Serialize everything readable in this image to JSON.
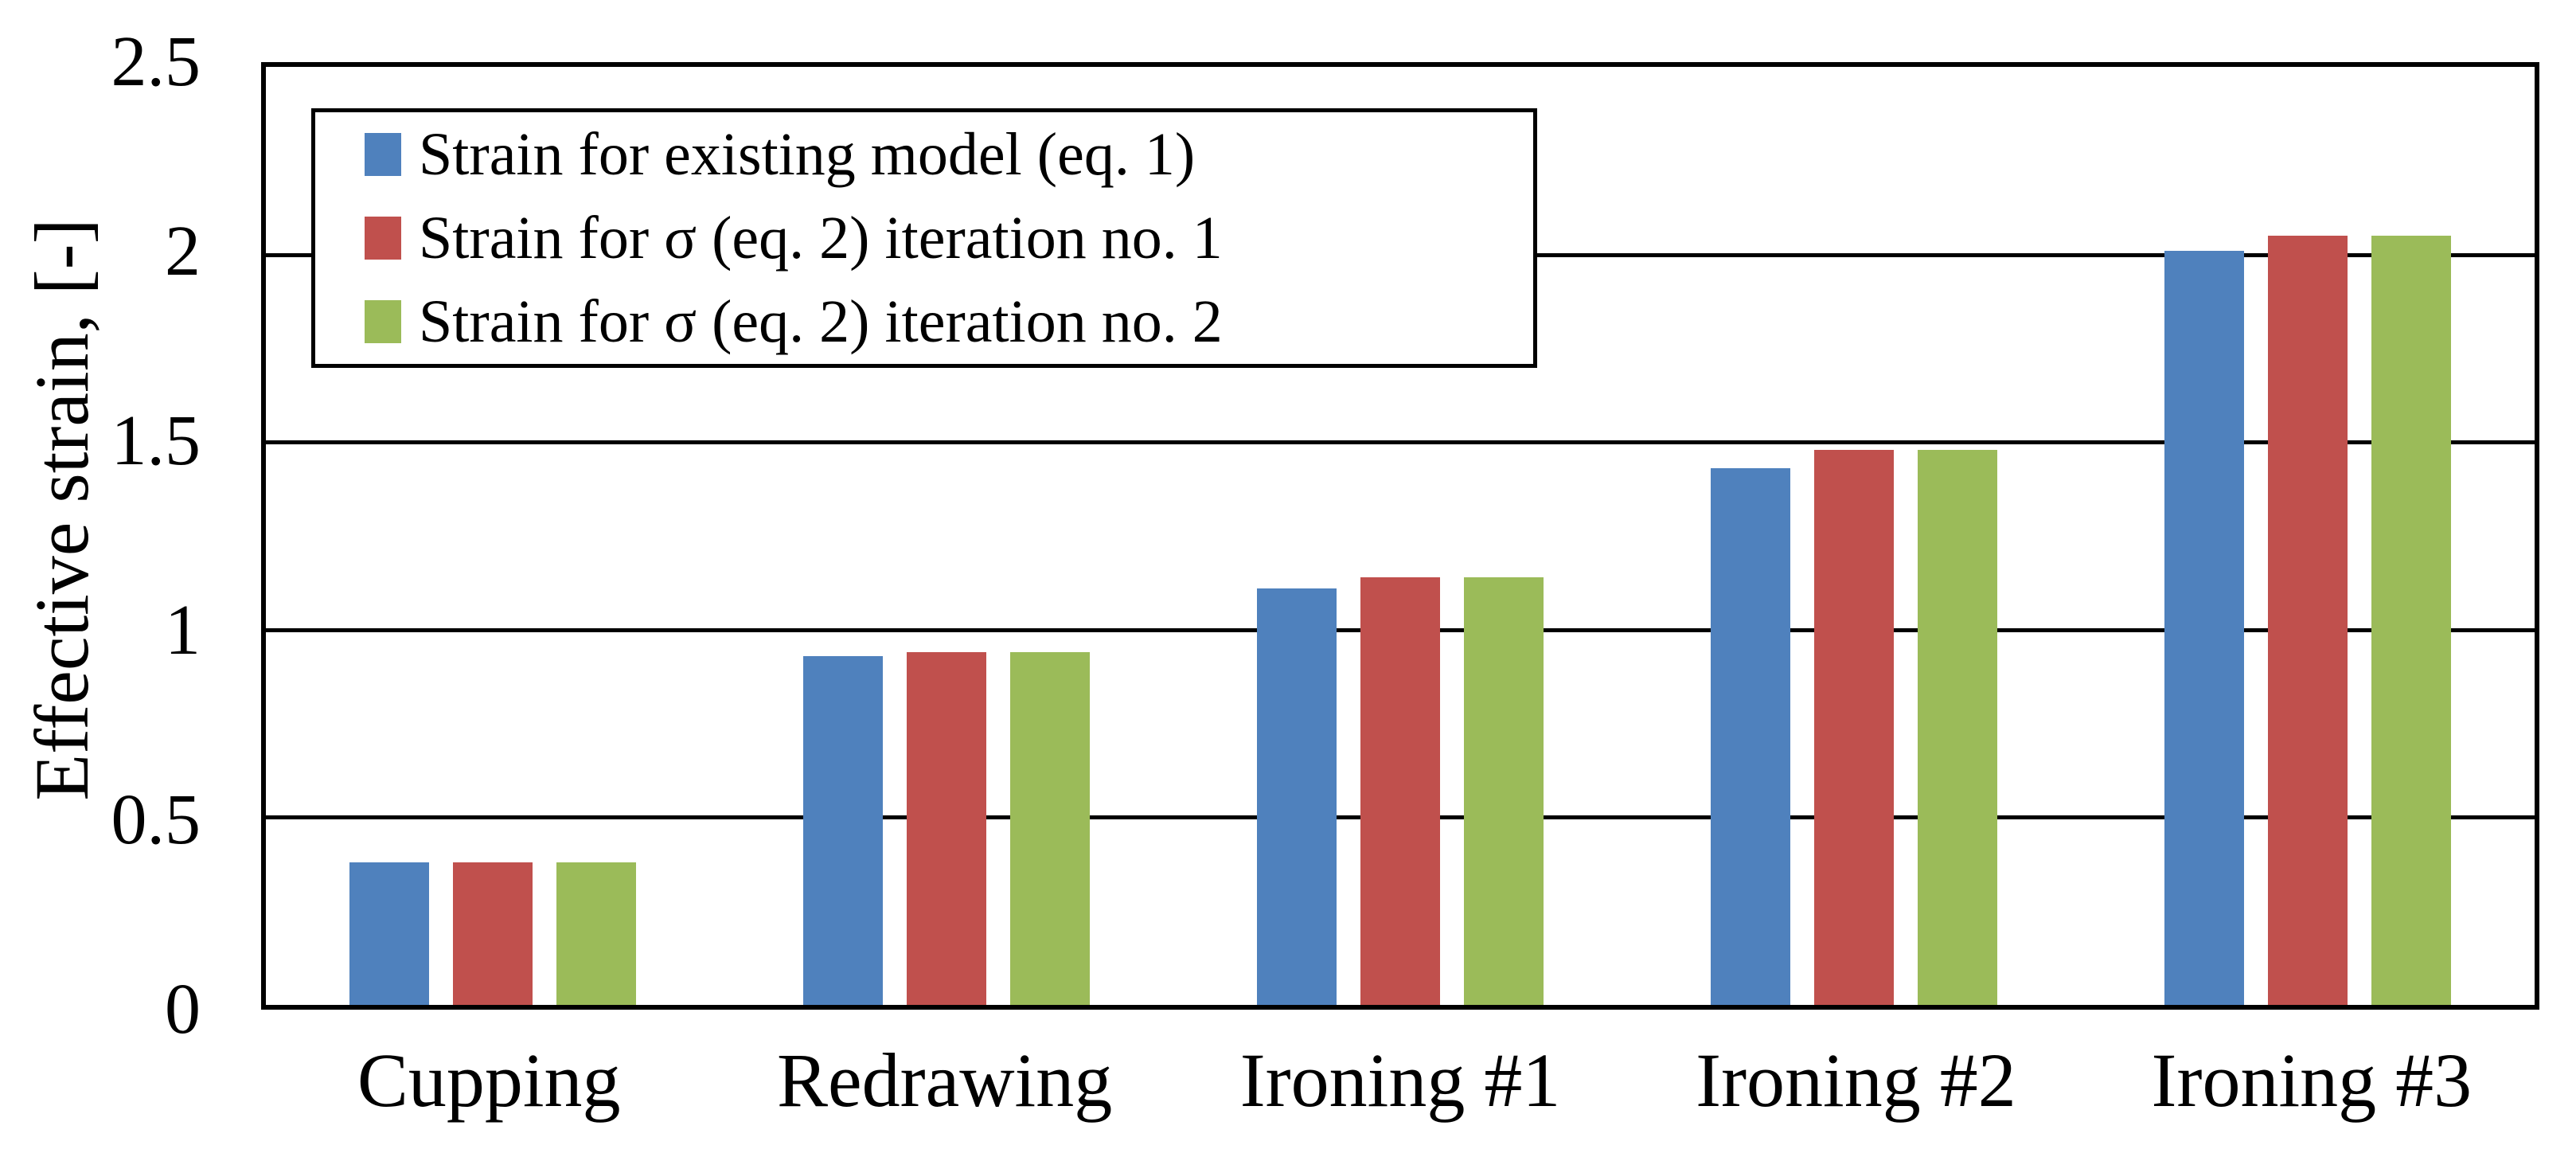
{
  "background": "#FFFFFF",
  "axis_color": "#000000",
  "chart_data": {
    "type": "bar",
    "title": "",
    "xlabel": "",
    "ylabel": "Effective strain, [-]",
    "categories": [
      "Cupping",
      "Redrawing",
      "Ironing #1",
      "Ironing #2",
      "Ironing #3"
    ],
    "series": [
      {
        "name": "Strain for existing model (eq. 1)",
        "color": "#4F81BD",
        "values": [
          0.38,
          0.93,
          1.11,
          1.43,
          2.01
        ]
      },
      {
        "name": "Strain for σ (eq. 2) iteration no. 1",
        "color": "#C0504D",
        "values": [
          0.38,
          0.94,
          1.14,
          1.48,
          2.05
        ]
      },
      {
        "name": "Strain for σ (eq. 2) iteration no. 2",
        "color": "#9BBB59",
        "values": [
          0.38,
          0.94,
          1.14,
          1.48,
          2.05
        ]
      }
    ],
    "ylim": [
      0,
      2.5
    ],
    "ytick_interval": 0.5,
    "yticks": [
      "2.5",
      "2",
      "1.5",
      "1",
      "0.5",
      "0"
    ],
    "grid": true,
    "legend_position": "top-left-inside",
    "legend_border_color": "#000000"
  }
}
